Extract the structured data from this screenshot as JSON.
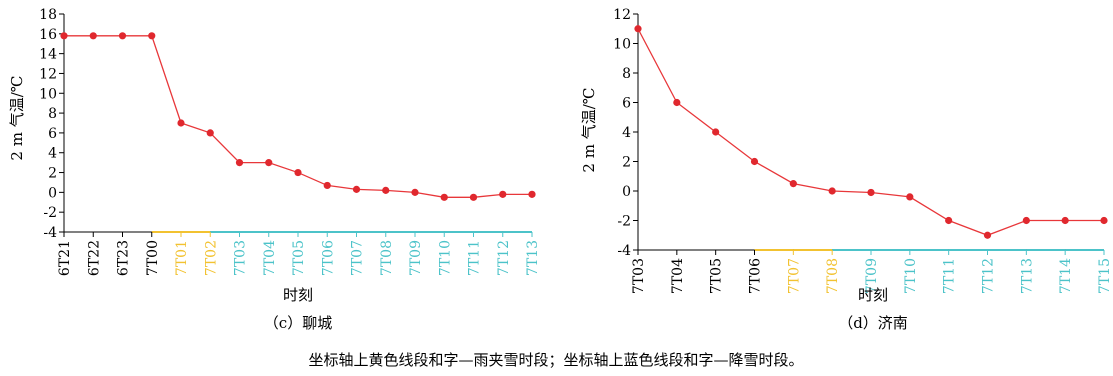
{
  "chart_data": [
    {
      "type": "line",
      "caption": "（c）聊城",
      "xlabel": "时刻",
      "ylabel": "2 m 气温/℃",
      "ylim": [
        -4,
        18
      ],
      "yticks": [
        -4,
        -2,
        0,
        2,
        4,
        6,
        8,
        10,
        12,
        14,
        16,
        18
      ],
      "categories": [
        "6T21",
        "6T22",
        "6T23",
        "7T00",
        "7T01",
        "7T02",
        "7T03",
        "7T04",
        "7T05",
        "7T06",
        "7T07",
        "7T08",
        "7T09",
        "7T10",
        "7T11",
        "7T12",
        "7T13"
      ],
      "category_phase": [
        "none",
        "none",
        "none",
        "none",
        "sleet",
        "sleet",
        "snow",
        "snow",
        "snow",
        "snow",
        "snow",
        "snow",
        "snow",
        "snow",
        "snow",
        "snow",
        "snow"
      ],
      "series": [
        {
          "values": [
            15.8,
            15.8,
            15.8,
            15.8,
            7.0,
            6.0,
            3.0,
            3.0,
            2.0,
            0.7,
            0.3,
            0.2,
            0.0,
            -0.5,
            -0.5,
            -0.2,
            -0.2
          ]
        }
      ]
    },
    {
      "type": "line",
      "caption": "（d）济南",
      "xlabel": "时刻",
      "ylabel": "2 m 气温/℃",
      "ylim": [
        -4,
        12
      ],
      "yticks": [
        -4,
        -2,
        0,
        2,
        4,
        6,
        8,
        10,
        12
      ],
      "categories": [
        "7T03",
        "7T04",
        "7T05",
        "7T06",
        "7T07",
        "7T08",
        "7T09",
        "7T10",
        "7T11",
        "7T12",
        "7T13",
        "7T14",
        "7T15"
      ],
      "category_phase": [
        "none",
        "none",
        "none",
        "none",
        "sleet",
        "sleet",
        "snow",
        "snow",
        "snow",
        "snow",
        "snow",
        "snow",
        "snow"
      ],
      "series": [
        {
          "values": [
            11.0,
            6.0,
            4.0,
            2.0,
            0.5,
            0.0,
            -0.1,
            -0.4,
            -2.0,
            -3.0,
            -2.0,
            -2.0,
            -2.0
          ]
        }
      ]
    }
  ],
  "note": "坐标轴上黄色线段和字—雨夹雪时段；坐标轴上蓝色线段和字—降雪时段。",
  "colors": {
    "line": "#e8373a",
    "marker": "#e0282e",
    "axis": "#000000",
    "sleet": "#f2c230",
    "snow": "#4cc3c9",
    "normal_tick": "#000000"
  }
}
